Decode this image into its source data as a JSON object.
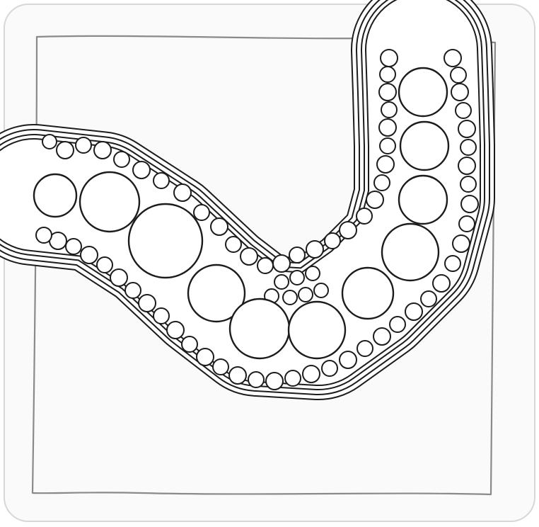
{
  "scene": {
    "subject": "zentangle-bubble-band-drawing",
    "medium": "ink-on-paper-tile",
    "colors": {
      "paper": "#fafafa",
      "ink": "#1c1c1c",
      "pencil-border": "#8a8a8a",
      "band-fill": "#ffffff"
    }
  }
}
